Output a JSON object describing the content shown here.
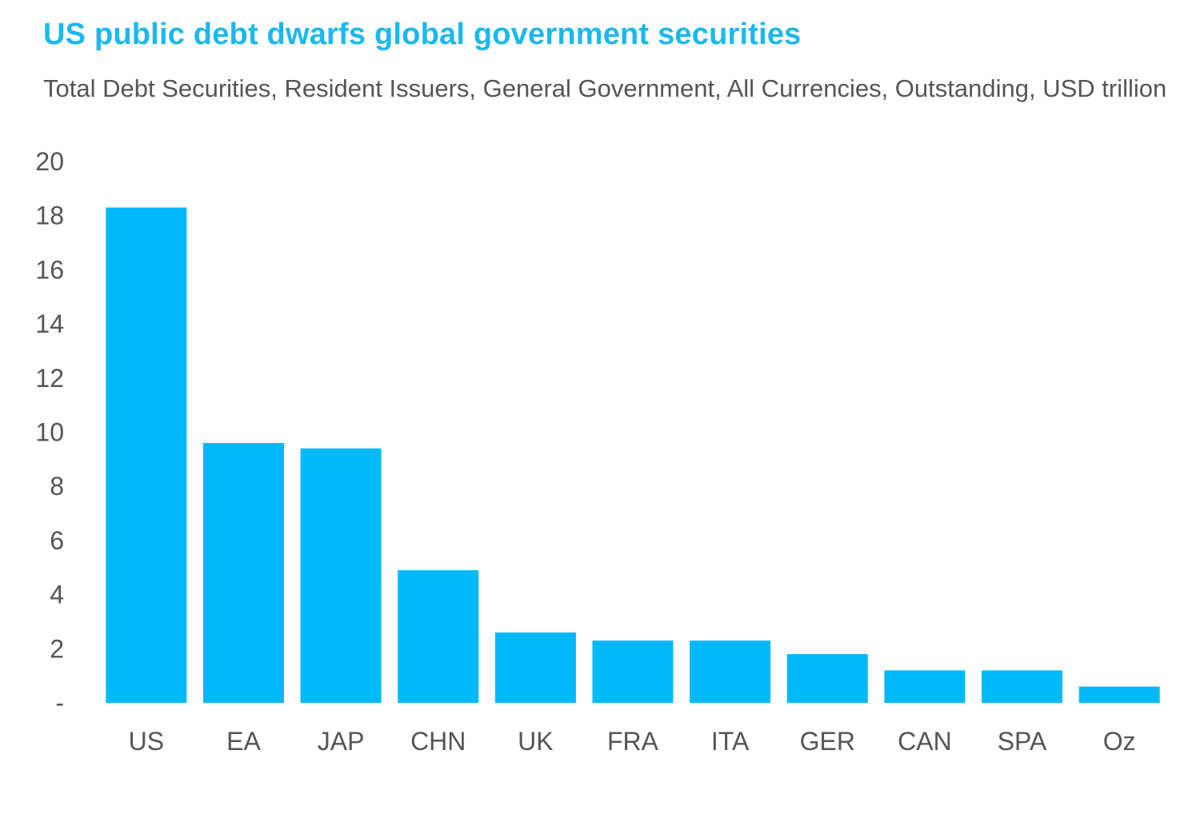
{
  "chart_data": {
    "type": "bar",
    "title": "US public debt dwarfs global government securities",
    "subtitle": "Total Debt Securities, Resident Issuers, General Government, All Currencies, Outstanding, USD trillion",
    "xlabel": "",
    "ylabel": "",
    "categories": [
      "US",
      "EA",
      "JAP",
      "CHN",
      "UK",
      "FRA",
      "ITA",
      "GER",
      "CAN",
      "SPA",
      "Oz"
    ],
    "values": [
      18.3,
      9.6,
      9.4,
      4.9,
      2.6,
      2.3,
      2.3,
      1.8,
      1.2,
      1.2,
      0.6
    ],
    "ylim": [
      0,
      20
    ],
    "yticks": [
      "-",
      "2",
      "4",
      "6",
      "8",
      "10",
      "12",
      "14",
      "16",
      "18",
      "20"
    ],
    "grid": false,
    "legend": "none",
    "colors": {
      "bar": "#00b9fb",
      "title": "#1ab8f0",
      "text": "#555555"
    }
  }
}
